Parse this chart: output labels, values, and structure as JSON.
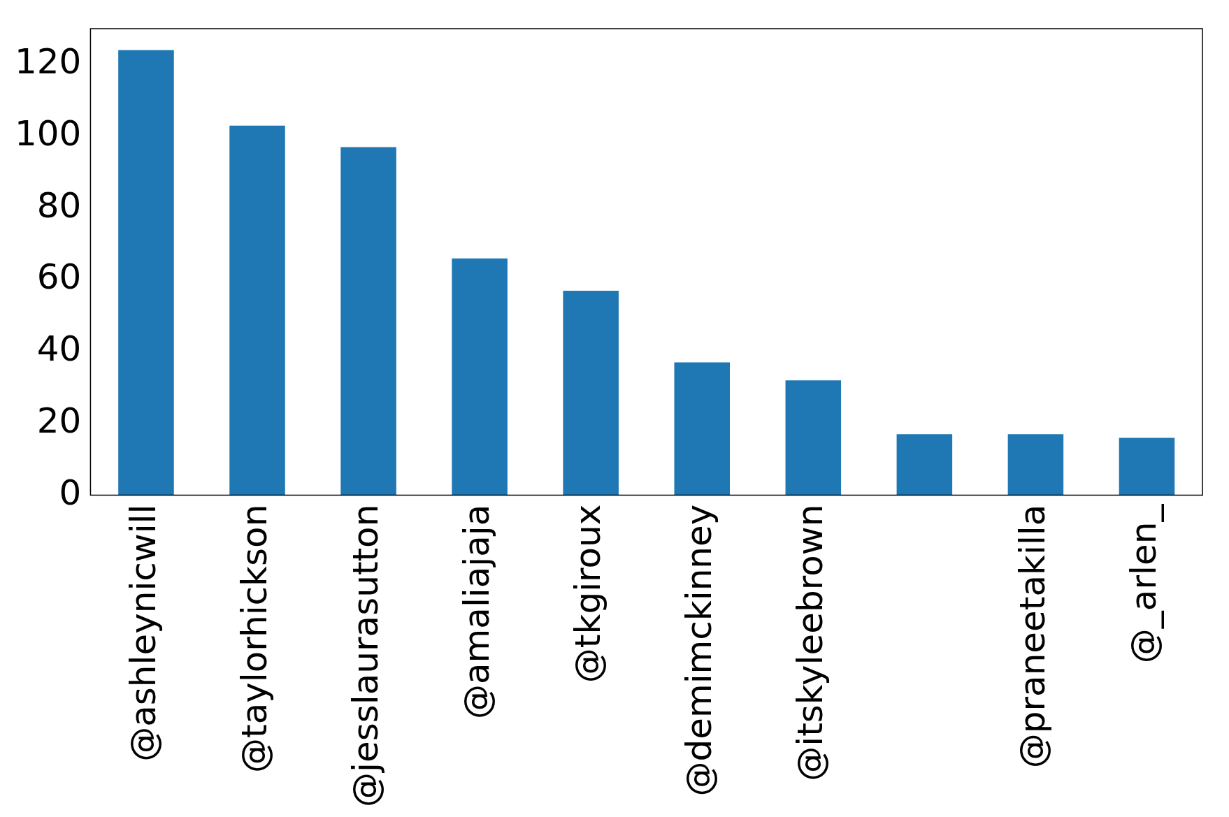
{
  "chart_data": {
    "type": "bar",
    "categories": [
      "@ashleynicwill",
      "@taylorhickson",
      "@jesslaurasutton",
      "@amaliajaja",
      "@tkgiroux",
      "@demimckinney",
      "@itskyleebrown",
      null,
      "@praneetakilla",
      "@_arlen_"
    ],
    "values": [
      124,
      103,
      97,
      66,
      57,
      37,
      32,
      17,
      17,
      16
    ],
    "color": "#1f77b4",
    "ylim": [
      0,
      130
    ],
    "yticks": [
      0,
      20,
      40,
      60,
      80,
      100,
      120
    ],
    "grid": false,
    "legend": false
  }
}
